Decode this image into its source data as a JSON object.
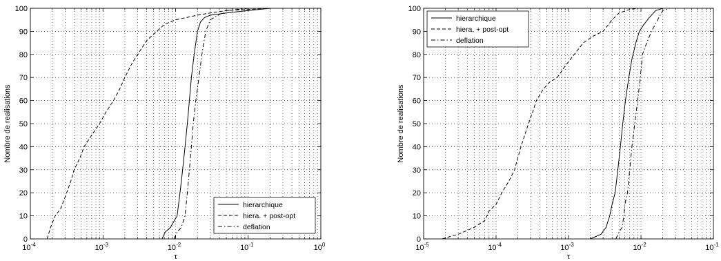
{
  "chart_data": [
    {
      "type": "line",
      "xscale": "log",
      "xlim": [
        0.0001,
        1
      ],
      "ylim": [
        0,
        100
      ],
      "xlabel": "τ",
      "ylabel": "Nombre de realisations",
      "grid": true,
      "legend_position": "bottom-right",
      "xtick_labels": [
        {
          "base": "10",
          "exp": "-4"
        },
        {
          "base": "10",
          "exp": "-3"
        },
        {
          "base": "10",
          "exp": "-2"
        },
        {
          "base": "10",
          "exp": "-1"
        },
        {
          "base": "10",
          "exp": "0"
        }
      ],
      "ytick_labels": [
        "0",
        "10",
        "20",
        "30",
        "40",
        "50",
        "60",
        "70",
        "80",
        "90",
        "100"
      ],
      "series": [
        {
          "name": "hierarchique",
          "style": "solid",
          "x": [
            0.0065,
            0.0072,
            0.0085,
            0.0105,
            0.0115,
            0.0125,
            0.0135,
            0.0145,
            0.0155,
            0.0165,
            0.018,
            0.02,
            0.022,
            0.025,
            0.03,
            0.05,
            0.1,
            0.2
          ],
          "y": [
            0,
            3,
            5,
            10,
            20,
            30,
            40,
            50,
            60,
            70,
            80,
            90,
            94,
            96,
            97,
            98,
            99,
            100
          ]
        },
        {
          "name": "hiera. + post-opt",
          "style": "dashed",
          "x": [
            0.00017,
            0.00019,
            0.00022,
            0.00026,
            0.0003,
            0.00036,
            0.0004,
            0.00048,
            0.00055,
            0.0007,
            0.0009,
            0.0011,
            0.0014,
            0.0017,
            0.002,
            0.0025,
            0.003,
            0.004,
            0.0055,
            0.007,
            0.01,
            0.02,
            0.03,
            0.05,
            0.1,
            0.2
          ],
          "y": [
            0,
            5,
            10,
            13,
            18,
            25,
            30,
            35,
            40,
            45,
            50,
            55,
            60,
            65,
            70,
            76,
            80,
            86,
            90,
            93,
            95,
            97,
            98,
            99,
            99.5,
            100
          ]
        },
        {
          "name": "deflation",
          "style": "dashdot",
          "x": [
            0.0095,
            0.0105,
            0.012,
            0.0135,
            0.0145,
            0.0155,
            0.0165,
            0.0175,
            0.019,
            0.021,
            0.023,
            0.026,
            0.03,
            0.05,
            0.1
          ],
          "y": [
            0,
            3,
            5,
            10,
            20,
            30,
            40,
            50,
            60,
            70,
            80,
            90,
            95,
            99,
            100
          ]
        }
      ]
    },
    {
      "type": "line",
      "xscale": "log",
      "xlim": [
        1e-05,
        0.1
      ],
      "ylim": [
        0,
        100
      ],
      "xlabel": "τ",
      "ylabel": "Nombre de realisations",
      "grid": true,
      "legend_position": "top-left",
      "xtick_labels": [
        {
          "base": "10",
          "exp": "-5"
        },
        {
          "base": "10",
          "exp": "-4"
        },
        {
          "base": "10",
          "exp": "-3"
        },
        {
          "base": "10",
          "exp": "-2"
        },
        {
          "base": "10",
          "exp": "-1"
        }
      ],
      "ytick_labels": [
        "0",
        "10",
        "20",
        "30",
        "40",
        "50",
        "60",
        "70",
        "80",
        "90",
        "100"
      ],
      "series": [
        {
          "name": "hierarchique",
          "style": "solid",
          "x": [
            0.002,
            0.0028,
            0.0033,
            0.0037,
            0.004,
            0.0044,
            0.0048,
            0.0052,
            0.0056,
            0.0061,
            0.0068,
            0.0075,
            0.0085,
            0.0095,
            0.011,
            0.013,
            0.016,
            0.02
          ],
          "y": [
            0,
            2,
            5,
            10,
            15,
            20,
            30,
            40,
            50,
            60,
            70,
            78,
            85,
            90,
            93,
            96,
            99,
            100
          ]
        },
        {
          "name": "hiera. + post-opt",
          "style": "dashed",
          "x": [
            1.8e-05,
            3e-05,
            5e-05,
            7e-05,
            8e-05,
            0.0001,
            0.00012,
            0.00015,
            0.00018,
            0.00022,
            0.00028,
            0.00032,
            0.00036,
            0.00045,
            0.00055,
            0.0007,
            0.0009,
            0.0012,
            0.0016,
            0.0022,
            0.003,
            0.004,
            0.005,
            0.007,
            0.009
          ],
          "y": [
            0,
            2,
            5,
            8,
            12,
            15,
            20,
            25,
            30,
            40,
            50,
            55,
            60,
            65,
            68,
            70,
            75,
            80,
            85,
            88,
            90,
            95,
            98,
            99.5,
            100
          ]
        },
        {
          "name": "deflation",
          "style": "dashdot",
          "x": [
            0.0045,
            0.005,
            0.0055,
            0.0058,
            0.006,
            0.0065,
            0.007,
            0.0075,
            0.0082,
            0.009,
            0.0098,
            0.0105,
            0.012,
            0.014,
            0.017,
            0.02,
            0.025
          ],
          "y": [
            0,
            3,
            5,
            10,
            15,
            20,
            30,
            40,
            50,
            60,
            70,
            80,
            85,
            90,
            95,
            99,
            100
          ]
        }
      ]
    }
  ]
}
